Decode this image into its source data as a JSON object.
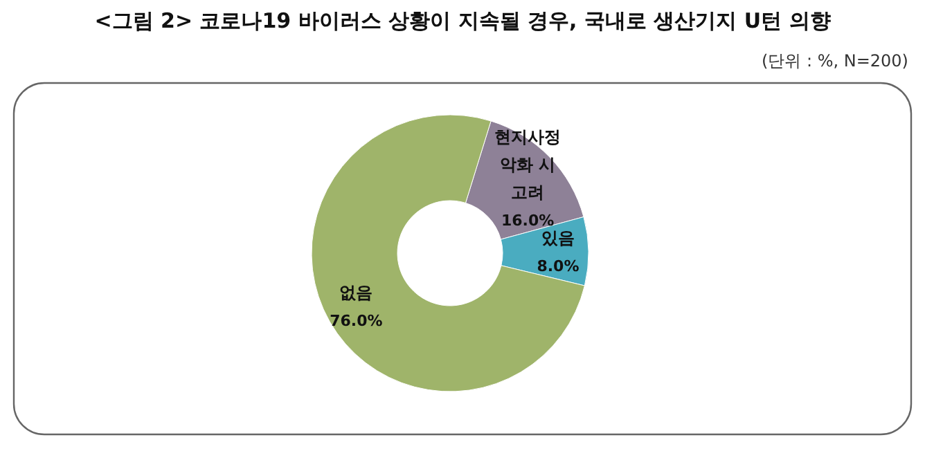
{
  "chart_data": {
    "type": "donut",
    "title": "<그림 2> 코로나19 바이러스 상황이 지속될 경우, 국내로 생산기지 U턴 의향",
    "subtitle": "(단위 : %, N=200)",
    "categories": [
      "현지사정 악화 시 고려",
      "있음",
      "없음"
    ],
    "values": [
      16,
      8,
      76
    ],
    "value_labels": [
      "16.0%",
      "8.0%",
      "76.0%"
    ],
    "colors": [
      "#8e8197",
      "#4aacc0",
      "#9fb46a"
    ]
  }
}
